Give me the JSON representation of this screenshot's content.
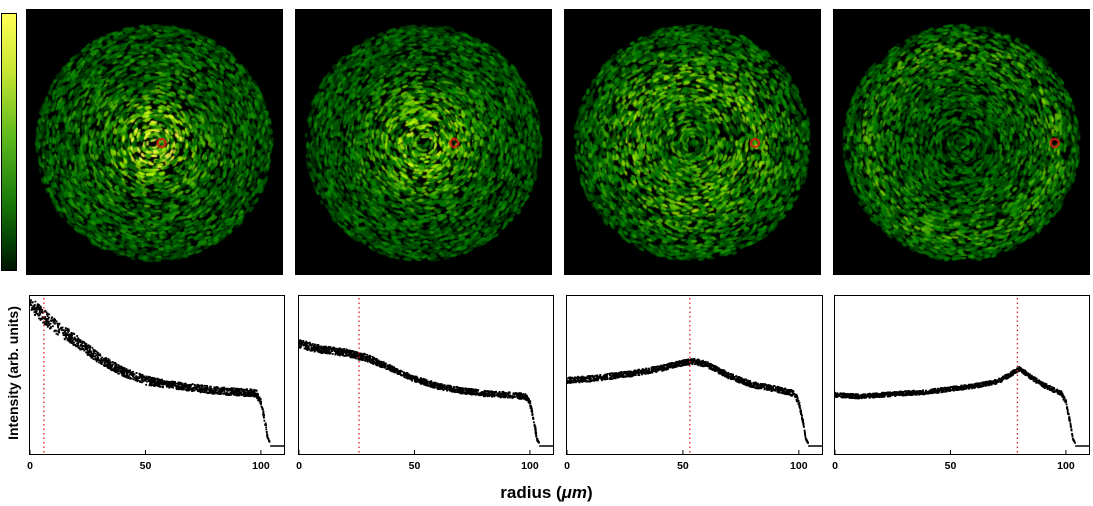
{
  "colorbar": {
    "gradient": [
      "#001400",
      "#033d03",
      "#1c7e0a",
      "#5db91d",
      "#c8e632",
      "#ffff55"
    ]
  },
  "colors": {
    "marker": "#e01818",
    "dotted_line": "#e02020",
    "profile": "#000000",
    "background": "#000000"
  },
  "ylabel": "Intensity (arb. units)",
  "xlabel_prefix": "radius (",
  "xlabel_unit": "μm",
  "xlabel_suffix": ")",
  "chart_data": [
    {
      "type": "scatter",
      "xlim": [
        0,
        110
      ],
      "xticks": [
        "0",
        "50",
        "100"
      ],
      "marker_radius": 6,
      "speckle": {
        "center_x": 57,
        "center_y": 143
      },
      "profile": {
        "x": [
          0,
          5,
          10,
          20,
          30,
          40,
          50,
          60,
          70,
          80,
          90,
          98,
          100,
          102,
          103,
          104,
          110
        ],
        "y": [
          0.98,
          0.9,
          0.83,
          0.72,
          0.6,
          0.51,
          0.45,
          0.42,
          0.4,
          0.38,
          0.37,
          0.36,
          0.3,
          0.15,
          0.05,
          0.02,
          0.0
        ],
        "spread": [
          0.05,
          0.05,
          0.05,
          0.04,
          0.035,
          0.03,
          0.03,
          0.025,
          0.025,
          0.025,
          0.025,
          0.025,
          0.02,
          0.02,
          0.01,
          0.0,
          0.0
        ]
      }
    },
    {
      "type": "scatter",
      "xlim": [
        0,
        110
      ],
      "xticks": [
        "0",
        "50",
        "100"
      ],
      "marker_radius": 26,
      "speckle": {
        "center_x": 57,
        "center_y": 143
      },
      "profile": {
        "x": [
          0,
          10,
          20,
          30,
          40,
          50,
          60,
          70,
          80,
          90,
          98,
          100,
          102,
          103,
          104,
          110
        ],
        "y": [
          0.7,
          0.66,
          0.64,
          0.6,
          0.53,
          0.46,
          0.41,
          0.38,
          0.36,
          0.35,
          0.34,
          0.3,
          0.15,
          0.05,
          0.02,
          0.0
        ],
        "spread": [
          0.03,
          0.025,
          0.025,
          0.025,
          0.02,
          0.02,
          0.02,
          0.02,
          0.02,
          0.02,
          0.02,
          0.02,
          0.02,
          0.01,
          0.0,
          0.0
        ]
      }
    },
    {
      "type": "scatter",
      "xlim": [
        0,
        110
      ],
      "xticks": [
        "0",
        "50",
        "100"
      ],
      "marker_radius": 53,
      "speckle": {
        "center_x": 57,
        "center_y": 143
      },
      "profile": {
        "x": [
          0,
          10,
          20,
          30,
          40,
          50,
          55,
          60,
          70,
          80,
          90,
          98,
          100,
          102,
          103,
          104,
          110
        ],
        "y": [
          0.45,
          0.46,
          0.48,
          0.5,
          0.53,
          0.57,
          0.58,
          0.56,
          0.48,
          0.42,
          0.39,
          0.36,
          0.3,
          0.15,
          0.05,
          0.02,
          0.0
        ],
        "spread": [
          0.02,
          0.02,
          0.02,
          0.02,
          0.02,
          0.02,
          0.02,
          0.02,
          0.02,
          0.02,
          0.02,
          0.02,
          0.02,
          0.01,
          0.0,
          0.0,
          0.0
        ]
      }
    },
    {
      "type": "scatter",
      "xlim": [
        0,
        110
      ],
      "xticks": [
        "0",
        "50",
        "100"
      ],
      "marker_radius": 79,
      "speckle": {
        "center_x": 57,
        "center_y": 143
      },
      "profile": {
        "x": [
          0,
          10,
          20,
          30,
          40,
          50,
          60,
          70,
          75,
          80,
          85,
          90,
          98,
          100,
          102,
          103,
          104,
          110
        ],
        "y": [
          0.35,
          0.34,
          0.35,
          0.36,
          0.37,
          0.39,
          0.41,
          0.44,
          0.48,
          0.53,
          0.47,
          0.42,
          0.36,
          0.3,
          0.15,
          0.05,
          0.02,
          0.0
        ],
        "spread": [
          0.015,
          0.015,
          0.015,
          0.015,
          0.015,
          0.015,
          0.015,
          0.015,
          0.015,
          0.015,
          0.015,
          0.015,
          0.015,
          0.015,
          0.01,
          0.0,
          0.0,
          0.0
        ]
      }
    }
  ]
}
